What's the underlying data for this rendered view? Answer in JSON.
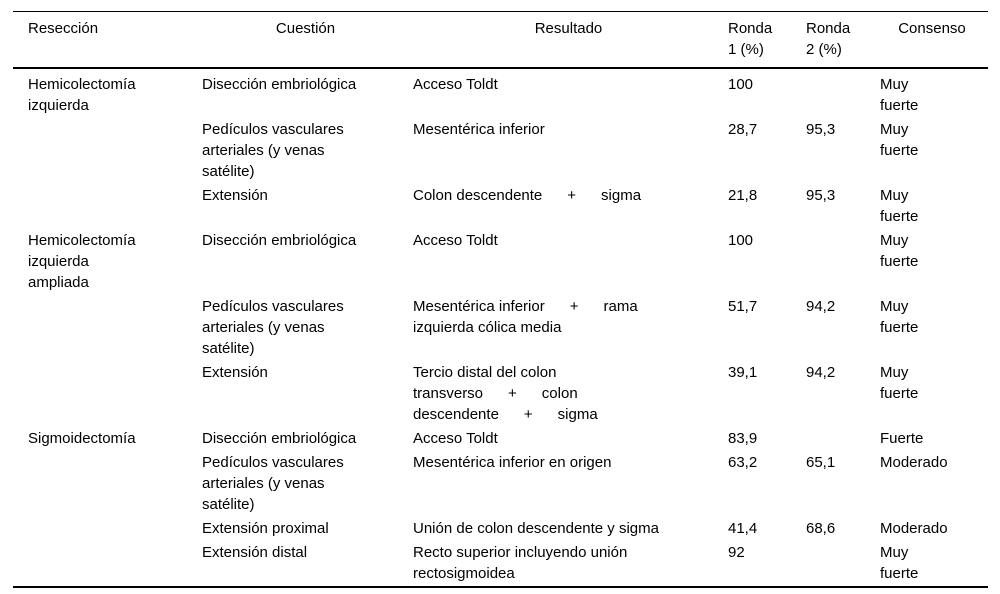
{
  "page": {
    "background_color": "#ffffff",
    "text_color": "#000000",
    "rule_color": "#000000"
  },
  "table": {
    "columns": [
      {
        "name": "reseccion",
        "label": "Resección",
        "align": "left"
      },
      {
        "name": "cuestion",
        "label": "Cuestión",
        "align": "center"
      },
      {
        "name": "resultado",
        "label": "Resultado",
        "align": "center"
      },
      {
        "name": "ronda-1",
        "label": "Ronda\n1 (%)",
        "align": "left"
      },
      {
        "name": "ronda-2",
        "label": "Ronda\n2 (%)",
        "align": "left"
      },
      {
        "name": "consenso",
        "label": "Consenso",
        "align": "center"
      }
    ],
    "rows": [
      [
        "Hemicolectomía\nizquierda",
        "Disección embriológica",
        "Acceso Toldt",
        "100",
        "",
        "Muy\nfuerte"
      ],
      [
        "",
        "Pedículos vasculares\narteriales (y venas\nsatélite)",
        "Mesentérica inferior",
        "28,7",
        "95,3",
        "Muy\nfuerte"
      ],
      [
        "",
        "Extensión",
        "Colon descendente      +      sigma",
        "21,8",
        "95,3",
        "Muy\nfuerte"
      ],
      [
        "Hemicolectomía\nizquierda\nampliada",
        "Disección embriológica",
        "Acceso Toldt",
        "100",
        "",
        "Muy\nfuerte"
      ],
      [
        "",
        "Pedículos vasculares\narteriales (y venas\nsatélite)",
        "Mesentérica inferior      +      rama\nizquierda cólica media",
        "51,7",
        "94,2",
        "Muy\nfuerte"
      ],
      [
        "",
        "Extensión",
        "Tercio distal del colon\ntransverso      +      colon\ndescendente      +      sigma",
        "39,1",
        "94,2",
        "Muy\nfuerte"
      ],
      [
        "Sigmoidectomía",
        "Disección embriológica",
        "Acceso Toldt",
        "83,9",
        "",
        "Fuerte"
      ],
      [
        "",
        "Pedículos vasculares\narteriales (y venas\nsatélite)",
        "Mesentérica inferior en origen",
        "63,2",
        "65,1",
        "Moderado"
      ],
      [
        "",
        "Extensión proximal",
        "Unión de colon descendente y sigma",
        "41,4",
        "68,6",
        "Moderado"
      ],
      [
        "",
        "Extensión distal",
        "Recto superior incluyendo unión\nrectosigmoidea",
        "92",
        "",
        "Muy\nfuerte"
      ]
    ]
  }
}
